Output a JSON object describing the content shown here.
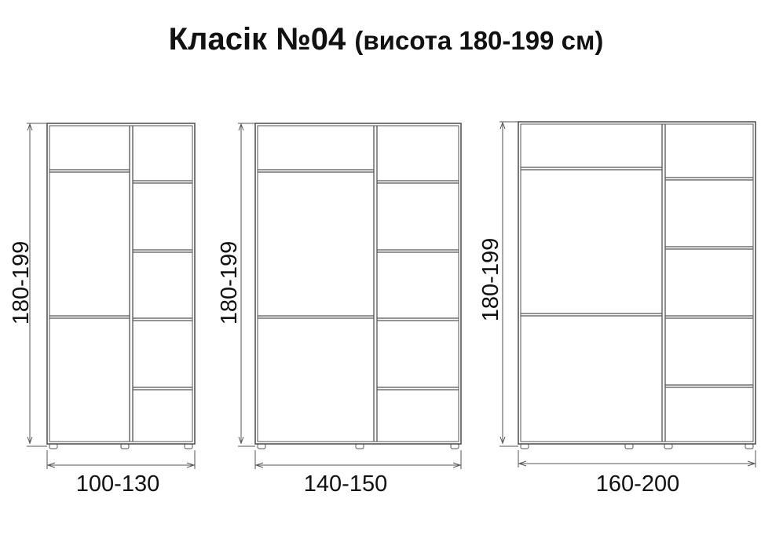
{
  "title": {
    "main": "Класік №04",
    "sub": "(висота 180-199 см)"
  },
  "wardrobes": [
    {
      "width_label": "100-130",
      "height_label": "180-199"
    },
    {
      "width_label": "140-150",
      "height_label": "180-199"
    },
    {
      "width_label": "160-200",
      "height_label": "180-199"
    }
  ],
  "colors": {
    "line": "#555555",
    "text": "#111111"
  }
}
